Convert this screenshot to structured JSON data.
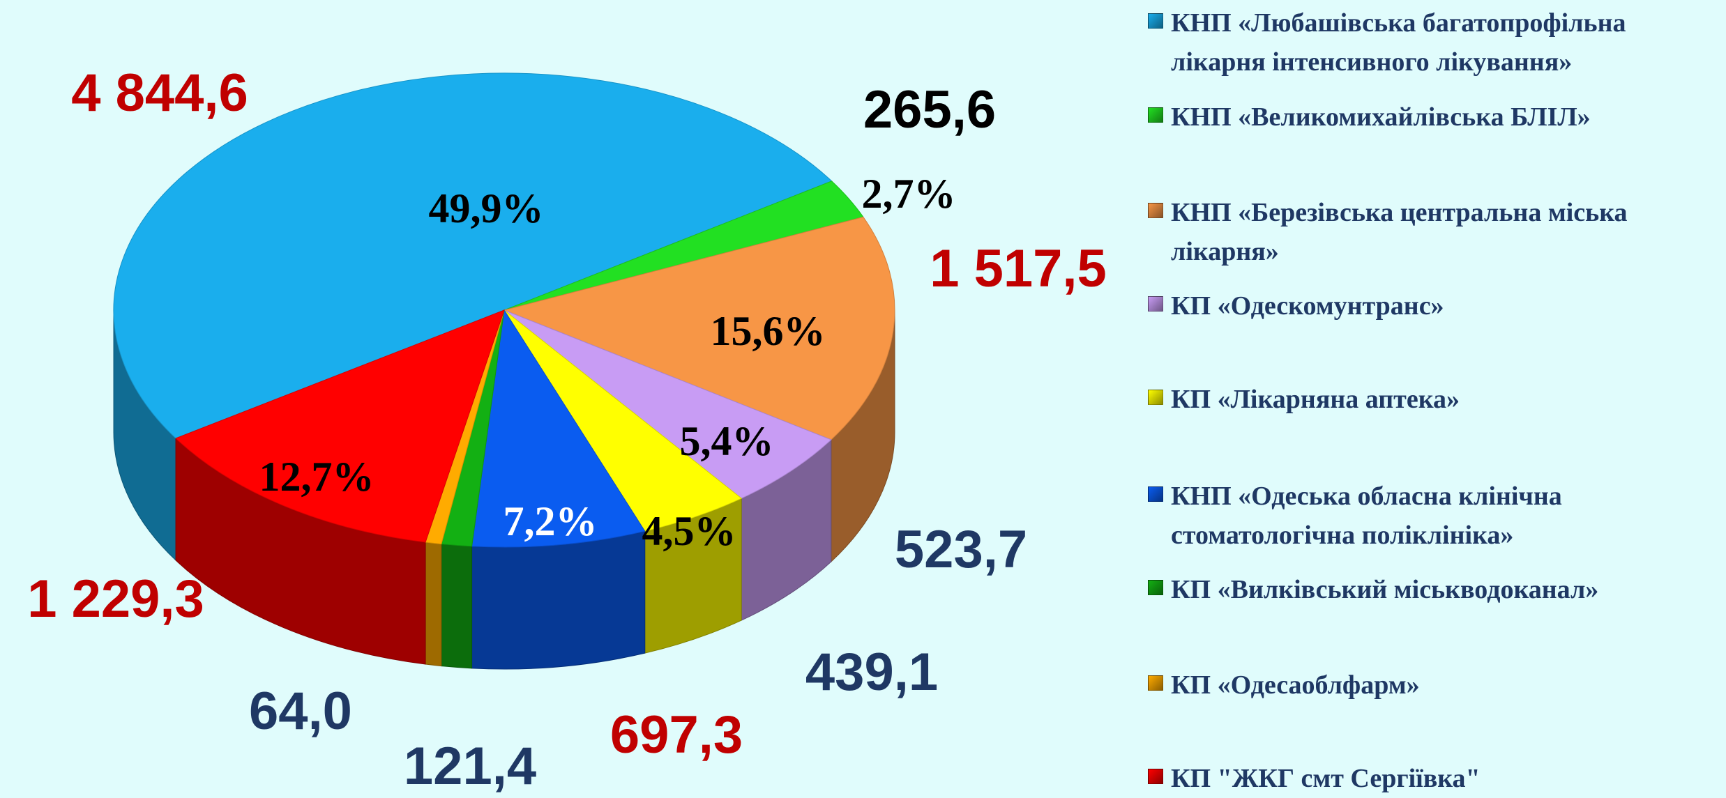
{
  "chart_data": {
    "type": "pie3d",
    "categories": [
      "КНП «Любашівська багатопрофільна лікарня інтенсивного лікування»",
      "КНП «Великомихайлівська БЛІЛ»",
      "КНП «Березівська центральна міська лікарня»",
      "КП «Одескомунтранс»",
      "КП «Лікарняна аптека»",
      "КНП «Одеська обласна клінічна стоматологічна поліклініка»",
      "КП «Вилківський міськводоканал»",
      "КП «Одесаоблфарм»",
      "КП \"ЖКГ смт Сергіївка\""
    ],
    "values": [
      4844.6,
      265.6,
      1517.5,
      523.7,
      439.1,
      697.3,
      121.4,
      64.0,
      1229.3
    ],
    "value_labels": [
      "4 844,6",
      "265,6",
      "1 517,5",
      "523,7",
      "439,1",
      "697,3",
      "121,4",
      "64,0",
      "1 229,3"
    ],
    "value_label_colors": [
      "#c00000",
      "#000000",
      "#c00000",
      "#1f3864",
      "#1f3864",
      "#c00000",
      "#1f3864",
      "#1f3864",
      "#c00000"
    ],
    "percent_labels": [
      "49,9%",
      "2,7%",
      "15,6%",
      "5,4%",
      "4,5%",
      "7,2%",
      null,
      null,
      "12,7%"
    ],
    "percent_label_colors": [
      "#000000",
      "#000000",
      "#000000",
      "#000000",
      "#000000",
      "#ffffff",
      null,
      null,
      "#000000"
    ],
    "colors": [
      "#1aaeed",
      "#22e022",
      "#f79646",
      "#c89cf4",
      "#ffff00",
      "#0a5cf0",
      "#13b013",
      "#ffab00",
      "#ff0000"
    ],
    "legend": "right"
  }
}
